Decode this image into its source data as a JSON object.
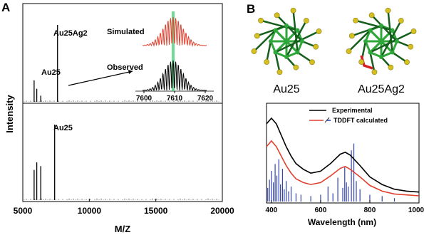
{
  "panel_a": {
    "label": "A",
    "ylabel": "Intensity",
    "xlabel": "M/Z",
    "top_peak_label_main": "Au25Ag2",
    "top_peak_label_small": "Au25",
    "bottom_peak_label": "Au25",
    "inset": {
      "simulated_label": "Simulated",
      "observed_label": "Observed",
      "xticks": [
        "7600",
        "7610",
        "7620"
      ]
    }
  },
  "panel_b": {
    "label": "B",
    "cluster_left_label": "Au25",
    "cluster_right_label": "Au25Ag2",
    "xlabel": "Wavelength (nm)",
    "legend_experimental": "Experimental",
    "legend_tddft": "TDDFT calculated"
  },
  "chart_data": [
    {
      "type": "line",
      "title": "",
      "xlabel": "M/Z",
      "ylabel": "Intensity",
      "xlim": [
        5000,
        20000
      ],
      "xticks": [
        5000,
        10000,
        15000,
        20000
      ],
      "series": [
        {
          "name": "Au25Ag2",
          "sticks": [
            [
              5850,
              0.28
            ],
            [
              6050,
              0.17
            ],
            [
              6350,
              0.08
            ],
            [
              7610,
              1.0
            ]
          ]
        },
        {
          "name": "Au25",
          "sticks": [
            [
              5850,
              0.4
            ],
            [
              6050,
              0.5
            ],
            [
              6350,
              0.45
            ],
            [
              7394,
              1.0
            ]
          ]
        }
      ]
    },
    {
      "type": "line",
      "xlabel": "Wavelength (nm)",
      "xlim": [
        380,
        1000
      ],
      "xticks": [
        400,
        600,
        800,
        1000
      ],
      "series": [
        {
          "name": "Experimental",
          "x": [
            380,
            400,
            420,
            440,
            460,
            480,
            500,
            530,
            560,
            600,
            640,
            680,
            700,
            720,
            760,
            800,
            850,
            900,
            950,
            1000
          ],
          "y": [
            0.82,
            0.88,
            0.82,
            0.7,
            0.58,
            0.48,
            0.4,
            0.34,
            0.3,
            0.32,
            0.4,
            0.5,
            0.52,
            0.49,
            0.38,
            0.26,
            0.18,
            0.13,
            0.11,
            0.1
          ]
        },
        {
          "name": "TDDFT calculated",
          "x": [
            380,
            400,
            420,
            440,
            460,
            480,
            500,
            530,
            560,
            600,
            640,
            680,
            700,
            720,
            760,
            800,
            850,
            900,
            950,
            1000
          ],
          "y": [
            0.58,
            0.64,
            0.58,
            0.48,
            0.38,
            0.3,
            0.24,
            0.2,
            0.18,
            0.2,
            0.27,
            0.35,
            0.37,
            0.34,
            0.26,
            0.17,
            0.11,
            0.08,
            0.07,
            0.06
          ]
        }
      ],
      "sticks": [
        [
          385,
          0.2
        ],
        [
          392,
          0.32
        ],
        [
          400,
          0.45
        ],
        [
          408,
          0.28
        ],
        [
          415,
          0.55
        ],
        [
          422,
          0.38
        ],
        [
          430,
          0.62
        ],
        [
          437,
          0.25
        ],
        [
          445,
          0.48
        ],
        [
          452,
          0.18
        ],
        [
          460,
          0.3
        ],
        [
          470,
          0.15
        ],
        [
          480,
          0.22
        ],
        [
          500,
          0.12
        ],
        [
          520,
          0.1
        ],
        [
          560,
          0.08
        ],
        [
          600,
          0.1
        ],
        [
          630,
          0.22
        ],
        [
          650,
          0.12
        ],
        [
          670,
          0.35
        ],
        [
          690,
          0.2
        ],
        [
          698,
          0.5
        ],
        [
          705,
          0.28
        ],
        [
          712,
          0.22
        ],
        [
          725,
          0.75
        ],
        [
          735,
          0.85
        ],
        [
          745,
          0.3
        ],
        [
          760,
          0.18
        ],
        [
          800,
          0.1
        ],
        [
          850,
          0.08
        ],
        [
          900,
          0.05
        ]
      ]
    }
  ]
}
